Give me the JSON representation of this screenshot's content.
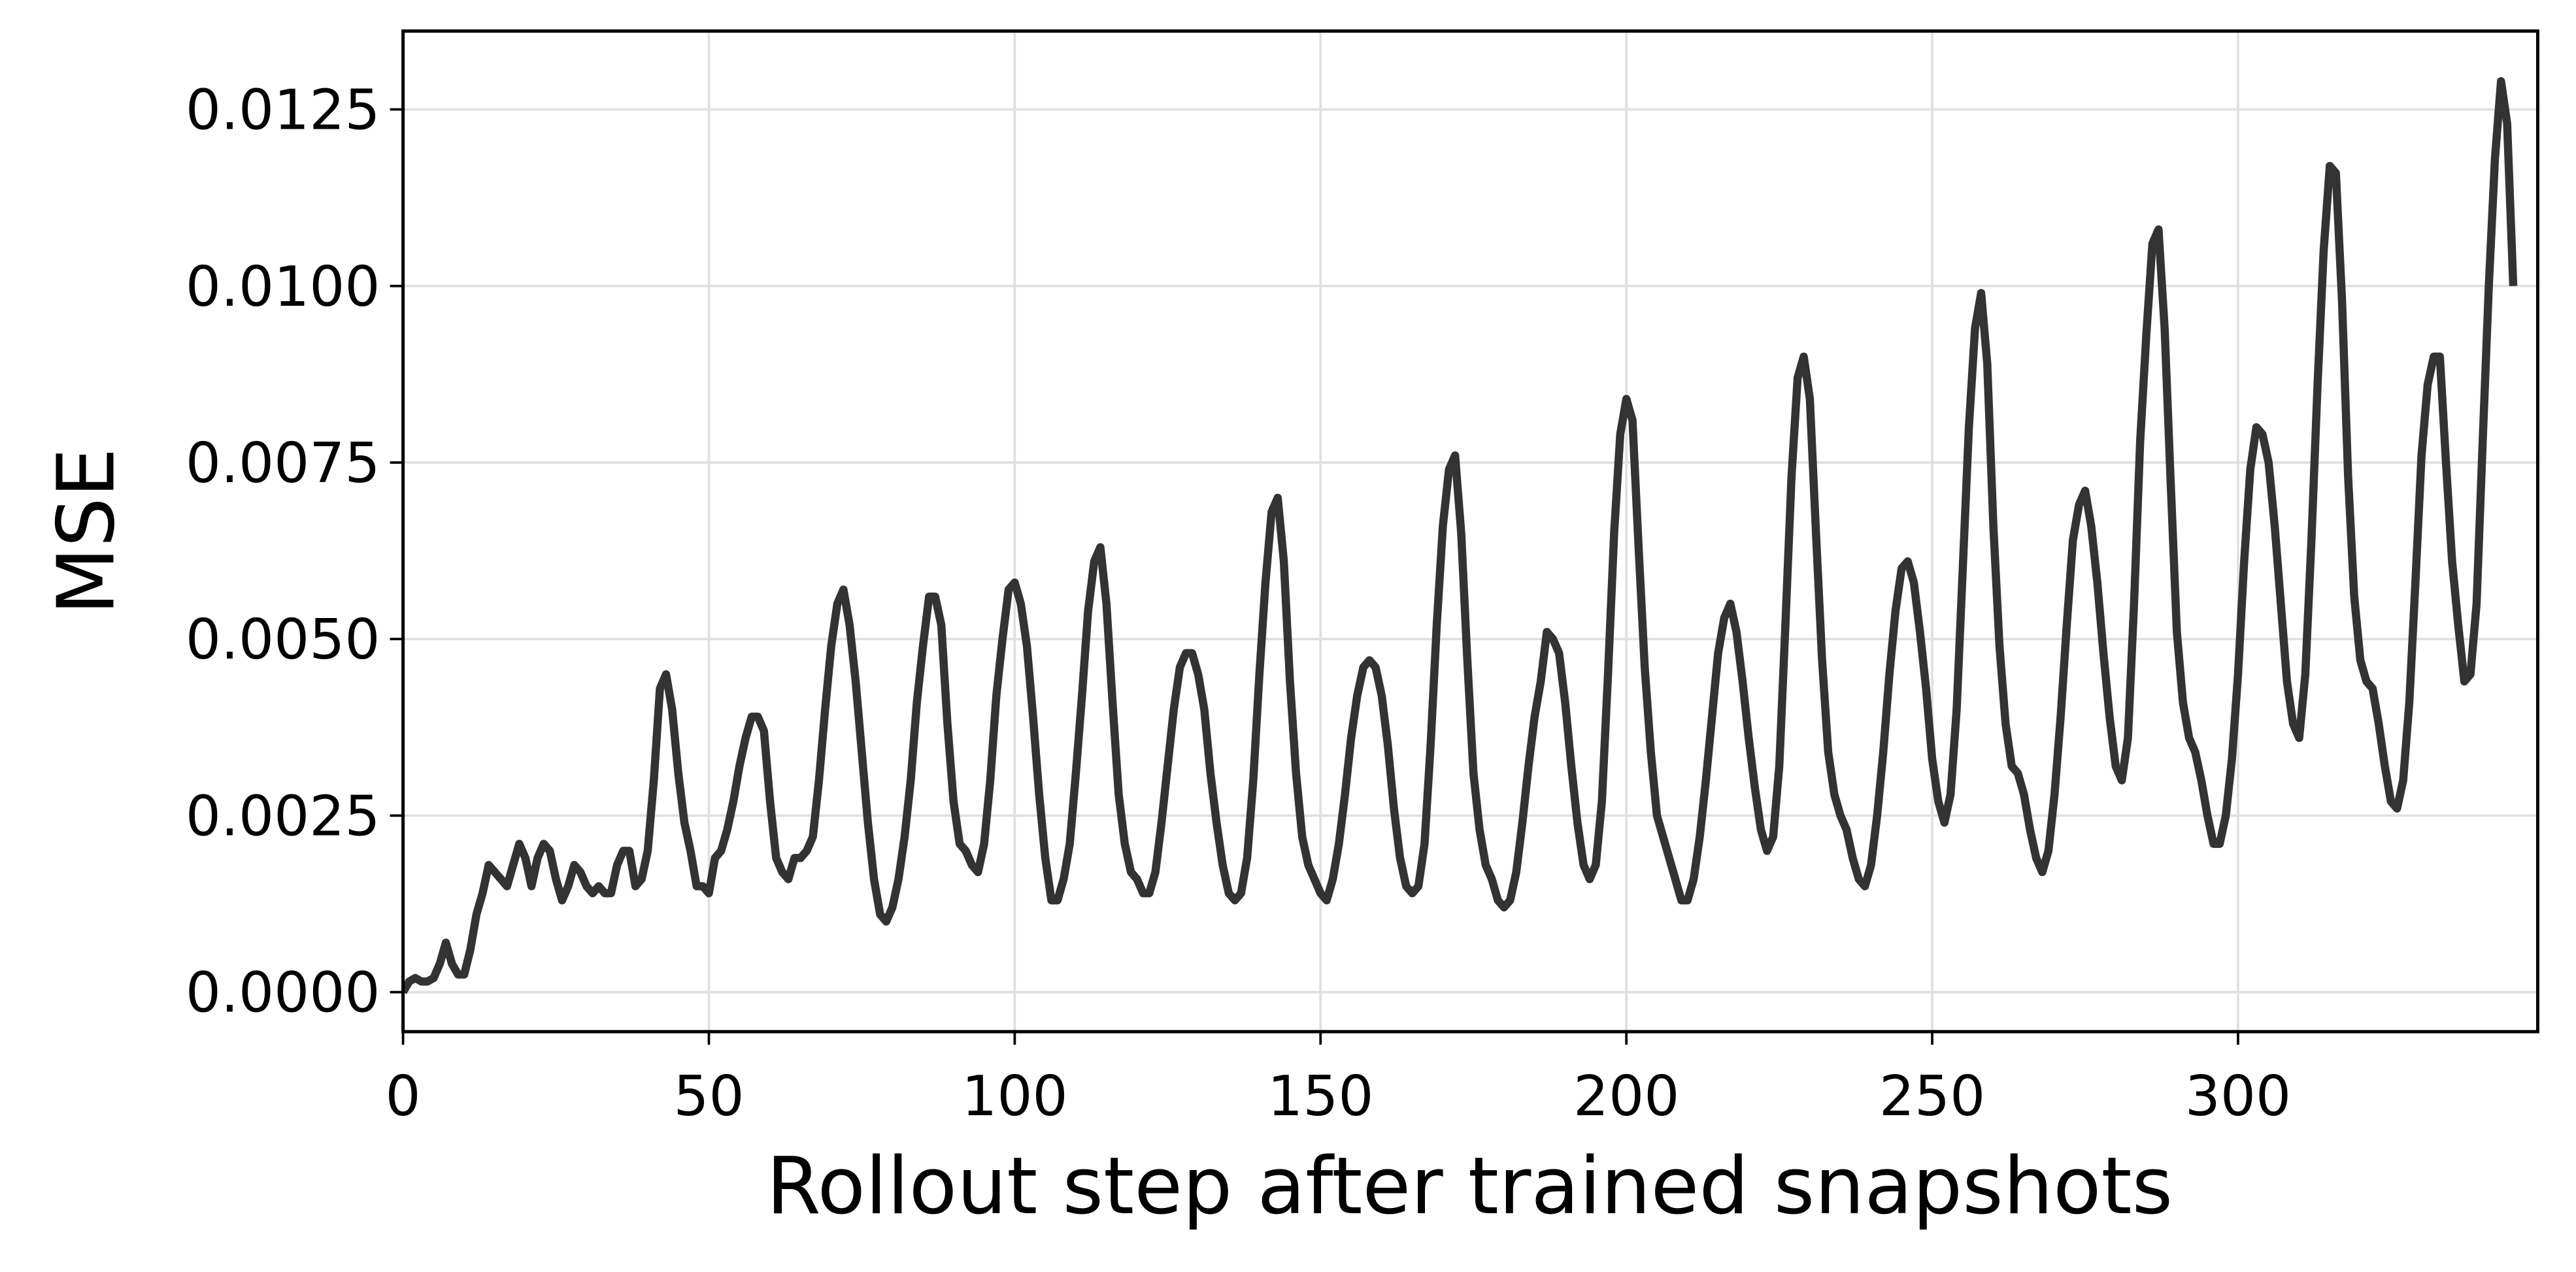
{
  "chart_data": {
    "type": "line",
    "xlabel": "Rollout step after trained snapshots",
    "ylabel": "MSE",
    "xlim": [
      0,
      349
    ],
    "ylim": [
      -0.00056,
      0.01361
    ],
    "xticks": [
      0,
      50,
      100,
      150,
      200,
      250,
      300
    ],
    "yticks": [
      {
        "value": 0,
        "label": "0.0000"
      },
      {
        "value": 0.0025,
        "label": "0.0025"
      },
      {
        "value": 0.005,
        "label": "0.0050"
      },
      {
        "value": 0.0075,
        "label": "0.0075"
      },
      {
        "value": 0.01,
        "label": "0.0100"
      },
      {
        "value": 0.0125,
        "label": "0.0125"
      }
    ],
    "grid": true,
    "x": [
      0,
      1,
      2,
      3,
      4,
      5,
      6,
      7,
      8,
      9,
      10,
      11,
      12,
      13,
      14,
      15,
      16,
      17,
      18,
      19,
      20,
      21,
      22,
      23,
      24,
      25,
      26,
      27,
      28,
      29,
      30,
      31,
      32,
      33,
      34,
      35,
      36,
      37,
      38,
      39,
      40,
      41,
      42,
      43,
      44,
      45,
      46,
      47,
      48,
      49,
      50,
      51,
      52,
      53,
      54,
      55,
      56,
      57,
      58,
      59,
      60,
      61,
      62,
      63,
      64,
      65,
      66,
      67,
      68,
      69,
      70,
      71,
      72,
      73,
      74,
      75,
      76,
      77,
      78,
      79,
      80,
      81,
      82,
      83,
      84,
      85,
      86,
      87,
      88,
      89,
      90,
      91,
      92,
      93,
      94,
      95,
      96,
      97,
      98,
      99,
      100,
      101,
      102,
      103,
      104,
      105,
      106,
      107,
      108,
      109,
      110,
      111,
      112,
      113,
      114,
      115,
      116,
      117,
      118,
      119,
      120,
      121,
      122,
      123,
      124,
      125,
      126,
      127,
      128,
      129,
      130,
      131,
      132,
      133,
      134,
      135,
      136,
      137,
      138,
      139,
      140,
      141,
      142,
      143,
      144,
      145,
      146,
      147,
      148,
      149,
      150,
      151,
      152,
      153,
      154,
      155,
      156,
      157,
      158,
      159,
      160,
      161,
      162,
      163,
      164,
      165,
      166,
      167,
      168,
      169,
      170,
      171,
      172,
      173,
      174,
      175,
      176,
      177,
      178,
      179,
      180,
      181,
      182,
      183,
      184,
      185,
      186,
      187,
      188,
      189,
      190,
      191,
      192,
      193,
      194,
      195,
      196,
      197,
      198,
      199,
      200,
      201,
      202,
      203,
      204,
      205,
      206,
      207,
      208,
      209,
      210,
      211,
      212,
      213,
      214,
      215,
      216,
      217,
      218,
      219,
      220,
      221,
      222,
      223,
      224,
      225,
      226,
      227,
      228,
      229,
      230,
      231,
      232,
      233,
      234,
      235,
      236,
      237,
      238,
      239,
      240,
      241,
      242,
      243,
      244,
      245,
      246,
      247,
      248,
      249,
      250,
      251,
      252,
      253,
      254,
      255,
      256,
      257,
      258,
      259,
      260,
      261,
      262,
      263,
      264,
      265,
      266,
      267,
      268,
      269,
      270,
      271,
      272,
      273,
      274,
      275,
      276,
      277,
      278,
      279,
      280,
      281,
      282,
      283,
      284,
      285,
      286,
      287,
      288,
      289,
      290,
      291,
      292,
      293,
      294,
      295,
      296,
      297,
      298,
      299,
      300,
      301,
      302,
      303,
      304,
      305,
      306,
      307,
      308,
      309,
      310,
      311,
      312,
      313,
      314,
      315,
      316,
      317,
      318,
      319,
      320,
      321,
      322,
      323,
      324,
      325,
      326,
      327,
      328,
      329,
      330,
      331,
      332,
      333,
      334,
      335,
      336,
      337,
      338,
      339,
      340,
      341,
      342,
      343,
      344,
      345
    ],
    "series": [
      {
        "color": "#333333",
        "values": [
          0.0,
          0.00015,
          0.0002,
          0.00015,
          0.00015,
          0.0002,
          0.0004,
          0.0007,
          0.0004,
          0.00025,
          0.00025,
          0.0006,
          0.0011,
          0.0014,
          0.0018,
          0.0017,
          0.0016,
          0.0015,
          0.0018,
          0.0021,
          0.0019,
          0.0015,
          0.0019,
          0.0021,
          0.002,
          0.0016,
          0.0013,
          0.0015,
          0.0018,
          0.0017,
          0.0015,
          0.0014,
          0.0015,
          0.0014,
          0.0014,
          0.0018,
          0.002,
          0.002,
          0.0015,
          0.0016,
          0.002,
          0.003,
          0.0043,
          0.0045,
          0.004,
          0.0031,
          0.0024,
          0.002,
          0.0015,
          0.0015,
          0.0014,
          0.0019,
          0.002,
          0.0023,
          0.0027,
          0.0032,
          0.0036,
          0.0039,
          0.0039,
          0.0037,
          0.0027,
          0.0019,
          0.0017,
          0.0016,
          0.0019,
          0.0019,
          0.002,
          0.0022,
          0.003,
          0.004,
          0.0049,
          0.0055,
          0.0057,
          0.0052,
          0.0044,
          0.0034,
          0.0024,
          0.0016,
          0.0011,
          0.001,
          0.0012,
          0.0016,
          0.0022,
          0.003,
          0.0041,
          0.0049,
          0.0056,
          0.0056,
          0.0052,
          0.0038,
          0.0027,
          0.0021,
          0.002,
          0.0018,
          0.0017,
          0.0021,
          0.003,
          0.0042,
          0.005,
          0.0057,
          0.0058,
          0.0055,
          0.0049,
          0.0039,
          0.0028,
          0.0019,
          0.0013,
          0.0013,
          0.0016,
          0.0021,
          0.0031,
          0.0042,
          0.0054,
          0.0061,
          0.0063,
          0.0055,
          0.0041,
          0.0028,
          0.0021,
          0.0017,
          0.0016,
          0.0014,
          0.0014,
          0.0017,
          0.0024,
          0.0032,
          0.004,
          0.0046,
          0.0048,
          0.0048,
          0.0045,
          0.004,
          0.0031,
          0.0024,
          0.0018,
          0.0014,
          0.0013,
          0.0014,
          0.0019,
          0.003,
          0.0045,
          0.0058,
          0.0068,
          0.007,
          0.0061,
          0.0044,
          0.0031,
          0.0022,
          0.0018,
          0.0016,
          0.0014,
          0.0013,
          0.0016,
          0.0021,
          0.0028,
          0.0036,
          0.0042,
          0.0046,
          0.0047,
          0.0046,
          0.0042,
          0.0035,
          0.0026,
          0.0019,
          0.0015,
          0.0014,
          0.0015,
          0.0021,
          0.0035,
          0.0052,
          0.0066,
          0.0074,
          0.0076,
          0.0065,
          0.0047,
          0.0031,
          0.0023,
          0.0018,
          0.0016,
          0.0013,
          0.0012,
          0.0013,
          0.0017,
          0.0024,
          0.0032,
          0.0039,
          0.0044,
          0.0051,
          0.005,
          0.0048,
          0.0041,
          0.0032,
          0.0024,
          0.0018,
          0.0016,
          0.0018,
          0.0027,
          0.0045,
          0.0065,
          0.0079,
          0.0084,
          0.0081,
          0.0063,
          0.0046,
          0.0034,
          0.0025,
          0.0022,
          0.0019,
          0.0016,
          0.0013,
          0.0013,
          0.0016,
          0.0022,
          0.003,
          0.0039,
          0.0048,
          0.0053,
          0.0055,
          0.0051,
          0.0044,
          0.0036,
          0.0029,
          0.0023,
          0.002,
          0.0022,
          0.0032,
          0.0052,
          0.0073,
          0.0087,
          0.009,
          0.0084,
          0.0065,
          0.0047,
          0.0034,
          0.0028,
          0.0025,
          0.0023,
          0.0019,
          0.0016,
          0.0015,
          0.0018,
          0.0025,
          0.0034,
          0.0045,
          0.0054,
          0.006,
          0.0061,
          0.0058,
          0.0051,
          0.0043,
          0.0033,
          0.0027,
          0.0024,
          0.0028,
          0.004,
          0.006,
          0.008,
          0.0094,
          0.0099,
          0.0089,
          0.0066,
          0.0049,
          0.0038,
          0.0032,
          0.0031,
          0.0028,
          0.0023,
          0.0019,
          0.0017,
          0.002,
          0.0028,
          0.0039,
          0.0052,
          0.0064,
          0.0069,
          0.0071,
          0.0066,
          0.0058,
          0.0048,
          0.0039,
          0.0032,
          0.003,
          0.0036,
          0.0055,
          0.0078,
          0.0093,
          0.0106,
          0.0108,
          0.0094,
          0.0072,
          0.0051,
          0.0041,
          0.0036,
          0.0034,
          0.003,
          0.0025,
          0.0021,
          0.0021,
          0.0025,
          0.0033,
          0.0045,
          0.0061,
          0.0074,
          0.008,
          0.0079,
          0.0075,
          0.0066,
          0.0055,
          0.0044,
          0.0038,
          0.0036,
          0.0045,
          0.0064,
          0.0086,
          0.0105,
          0.0117,
          0.0116,
          0.0098,
          0.0073,
          0.0056,
          0.0047,
          0.0044,
          0.0043,
          0.0038,
          0.0032,
          0.0027,
          0.0026,
          0.003,
          0.0041,
          0.0058,
          0.0076,
          0.0086,
          0.009,
          0.009,
          0.0075,
          0.0061,
          0.0052,
          0.0044,
          0.0045,
          0.0055,
          0.0078,
          0.01,
          0.0118,
          0.0129,
          0.0123,
          0.01
        ]
      }
    ]
  }
}
